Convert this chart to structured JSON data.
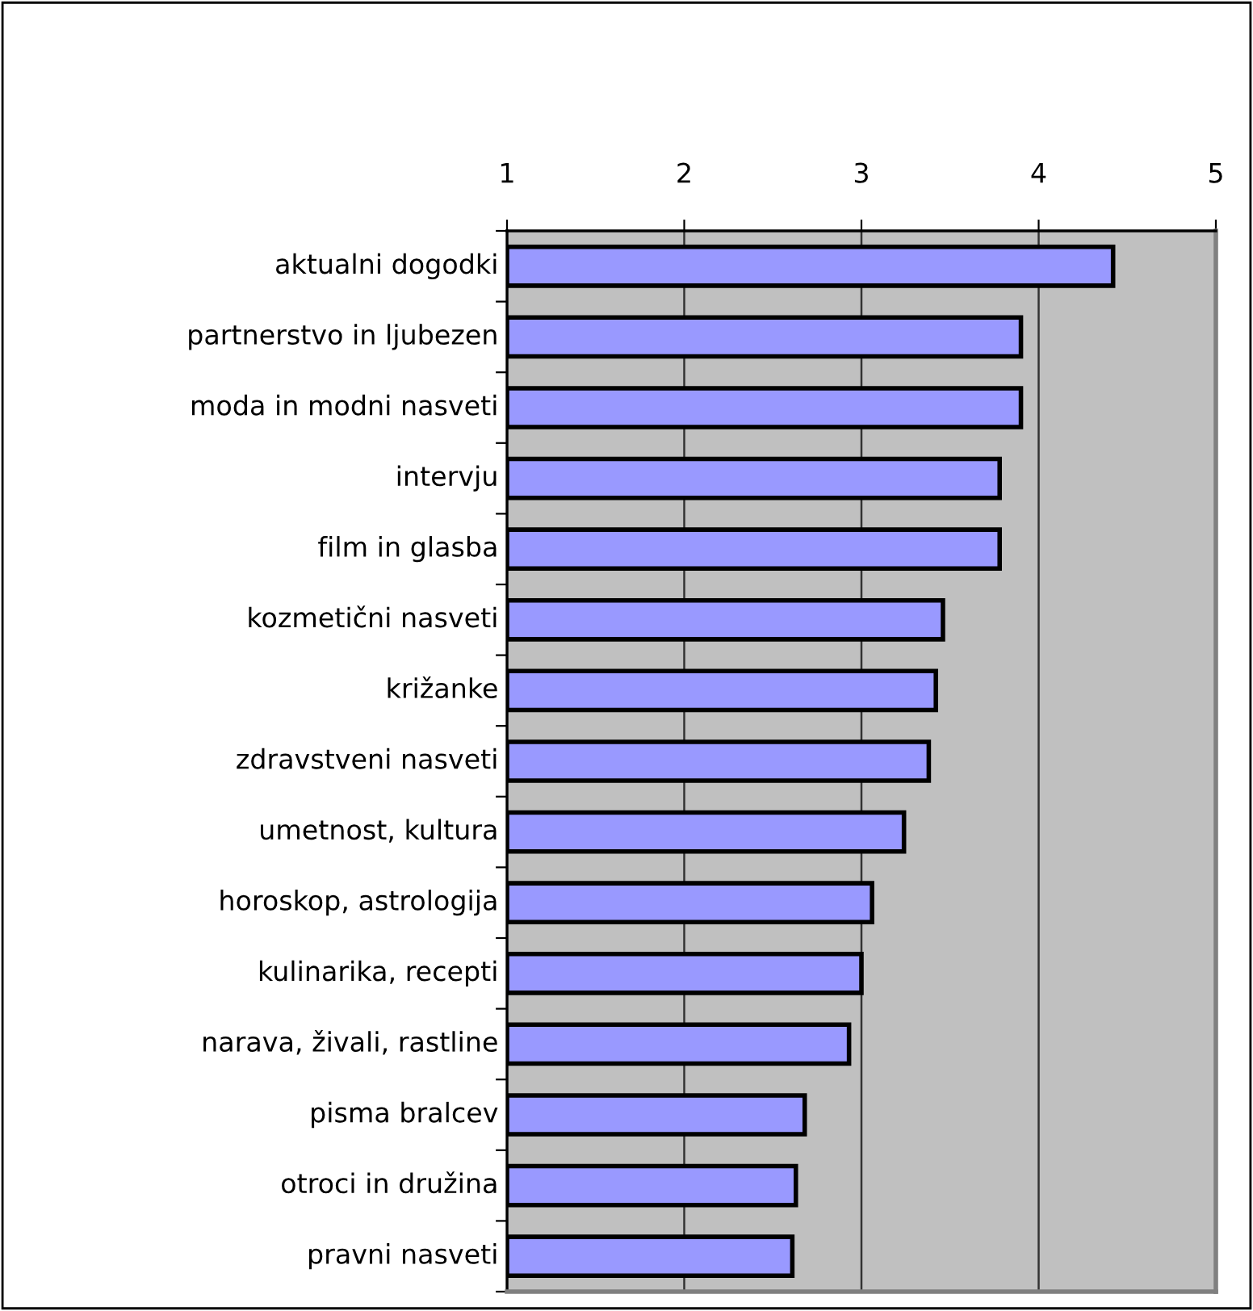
{
  "chart_data": {
    "type": "bar",
    "orientation": "horizontal",
    "categories": [
      "aktualni dogodki",
      "partnerstvo in ljubezen",
      "moda in modni nasveti",
      "intervju",
      "film in glasba",
      "kozmetični nasveti",
      "križanke",
      "zdravstveni nasveti",
      "umetnost, kultura",
      "horoskop, astrologija",
      "kulinarika, recepti",
      "narava, živali, rastline",
      "pisma bralcev",
      "otroci in družina",
      "pravni nasveti"
    ],
    "values": [
      4.42,
      3.9,
      3.9,
      3.78,
      3.78,
      3.46,
      3.42,
      3.38,
      3.24,
      3.06,
      3.0,
      2.93,
      2.68,
      2.63,
      2.61
    ],
    "color": "#9999ff",
    "xlim": [
      1,
      5
    ],
    "xticks": [
      1,
      2,
      3,
      4,
      5
    ],
    "grid": "x"
  }
}
